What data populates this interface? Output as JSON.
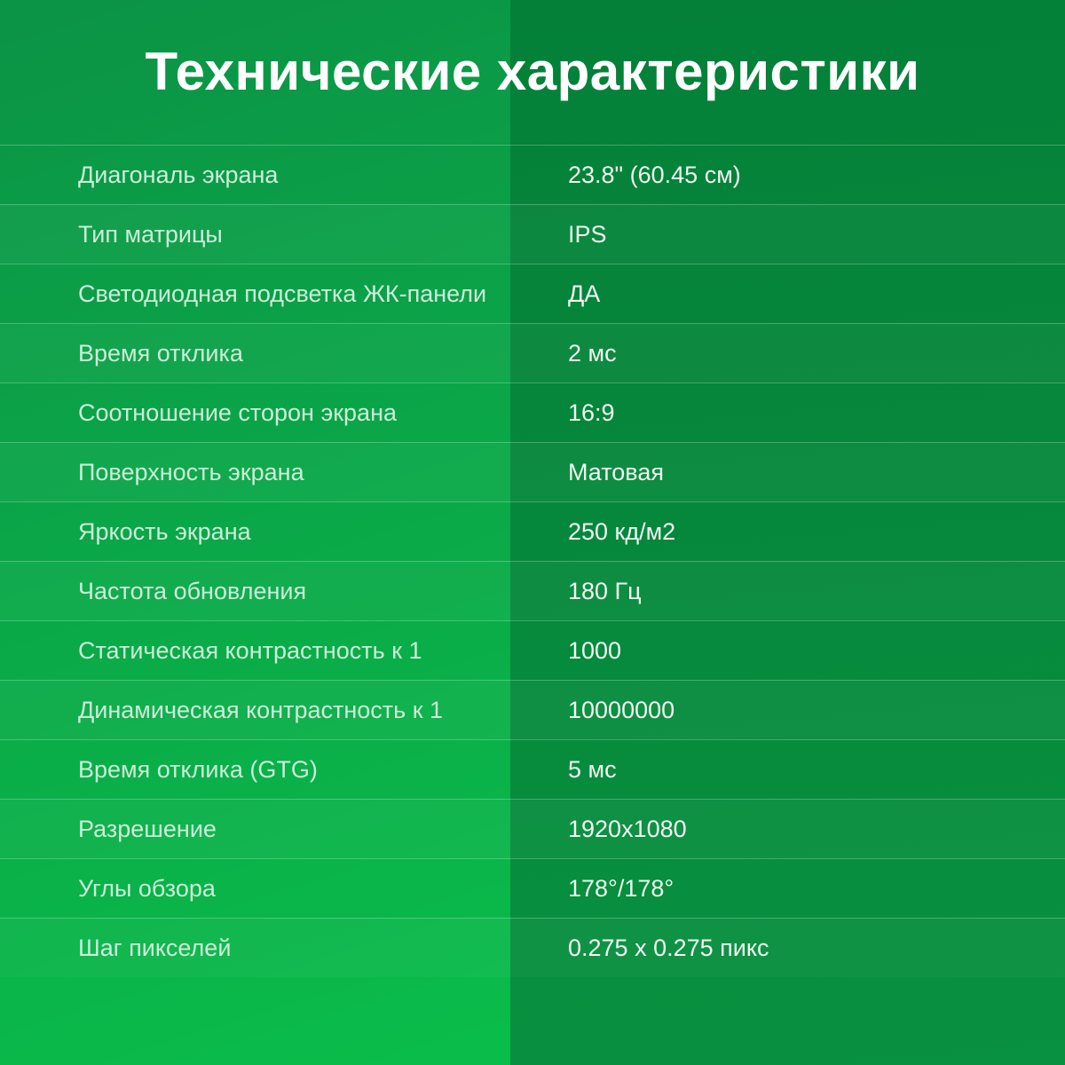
{
  "title": "Технические характеристики",
  "colors": {
    "left_bg_top": "#0b9346",
    "left_bg_bottom": "#0abd4a",
    "right_bg_top": "#048038",
    "right_bg_bottom": "#089140",
    "title_text": "#ffffff",
    "label_text": "#cbedd8",
    "value_text": "#eff9f2",
    "divider": "rgba(255,255,255,0.25)"
  },
  "specs": {
    "rows": [
      {
        "label": "Диагональ экрана",
        "value": "23.8\" (60.45 см)"
      },
      {
        "label": "Тип матрицы",
        "value": "IPS"
      },
      {
        "label": "Светодиодная подсветка ЖК-панели",
        "value": "ДА"
      },
      {
        "label": "Время отклика",
        "value": "2 мс"
      },
      {
        "label": "Соотношение сторон экрана",
        "value": "16:9"
      },
      {
        "label": "Поверхность экрана",
        "value": "Матовая"
      },
      {
        "label": "Яркость экрана",
        "value": "250 кд/м2"
      },
      {
        "label": "Частота обновления",
        "value": "180 Гц"
      },
      {
        "label": "Статическая контрастность к 1",
        "value": "1000"
      },
      {
        "label": "Динамическая контрастность к 1",
        "value": "10000000"
      },
      {
        "label": "Время отклика (GTG)",
        "value": "5 мс"
      },
      {
        "label": "Разрешение",
        "value": "1920x1080"
      },
      {
        "label": "Углы обзора",
        "value": "178°/178°"
      },
      {
        "label": "Шаг пикселей",
        "value": "0.275 x 0.275 пикс"
      }
    ]
  }
}
